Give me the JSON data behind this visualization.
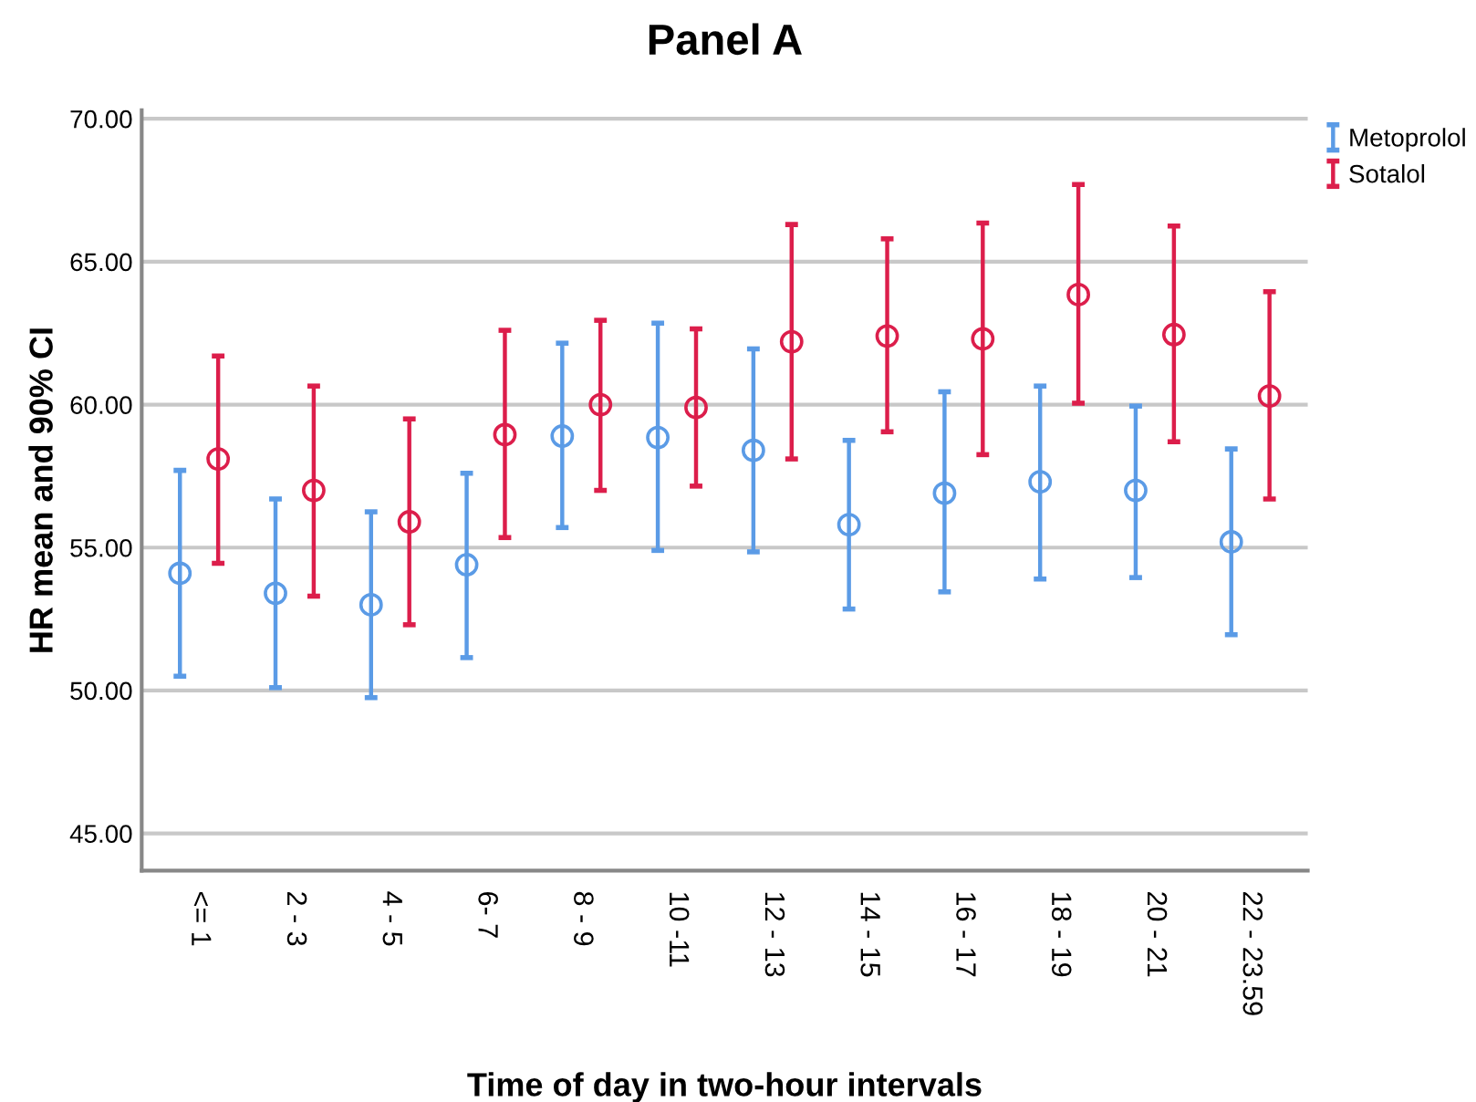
{
  "chart_data": {
    "type": "scatter",
    "title": "Panel A",
    "xlabel": "Time of day in two-hour intervals",
    "ylabel": "HR mean and 90% CI",
    "categories": [
      "<= 1",
      "2 - 3",
      "4 - 5",
      "6- 7",
      "8 - 9",
      "10 -11",
      "12 - 13",
      "14 - 15",
      "16 - 17",
      "18 - 19",
      "20 - 21",
      "22 - 23.59"
    ],
    "series": [
      {
        "name": "Metoprolol",
        "color": "#5b9be6",
        "values": [
          54.1,
          53.4,
          53.0,
          54.4,
          58.9,
          58.85,
          58.4,
          55.8,
          56.9,
          57.3,
          57.0,
          55.2
        ],
        "errors": [
          [
            50.5,
            57.7
          ],
          [
            50.1,
            56.7
          ],
          [
            49.75,
            56.25
          ],
          [
            51.15,
            57.6
          ],
          [
            55.7,
            62.15
          ],
          [
            54.9,
            62.85
          ],
          [
            54.85,
            61.95
          ],
          [
            52.85,
            58.75
          ],
          [
            53.45,
            60.45
          ],
          [
            53.9,
            60.65
          ],
          [
            53.95,
            59.95
          ],
          [
            51.95,
            58.45
          ]
        ]
      },
      {
        "name": "Sotalol",
        "color": "#dc1e4b",
        "values": [
          58.1,
          57.0,
          55.9,
          58.95,
          60.0,
          59.9,
          62.2,
          62.4,
          62.3,
          63.85,
          62.45,
          60.3
        ],
        "errors": [
          [
            54.45,
            61.7
          ],
          [
            53.3,
            60.65
          ],
          [
            52.3,
            59.5
          ],
          [
            55.35,
            62.6
          ],
          [
            57.0,
            62.95
          ],
          [
            57.15,
            62.65
          ],
          [
            58.1,
            66.3
          ],
          [
            59.05,
            65.8
          ],
          [
            58.25,
            66.35
          ],
          [
            60.05,
            67.7
          ],
          [
            58.7,
            66.25
          ],
          [
            56.7,
            63.95
          ]
        ]
      }
    ],
    "ylim": [
      43.7,
      70.3
    ],
    "yticks": [
      {
        "value": 45,
        "label": "45.00"
      },
      {
        "value": 50,
        "label": "50.00"
      },
      {
        "value": 55,
        "label": "55.00"
      },
      {
        "value": 60,
        "label": "60.00"
      },
      {
        "value": 65,
        "label": "65.00"
      },
      {
        "value": 70,
        "label": "70.00"
      }
    ],
    "grid": "y",
    "legend": "top right",
    "marker": "circle"
  }
}
